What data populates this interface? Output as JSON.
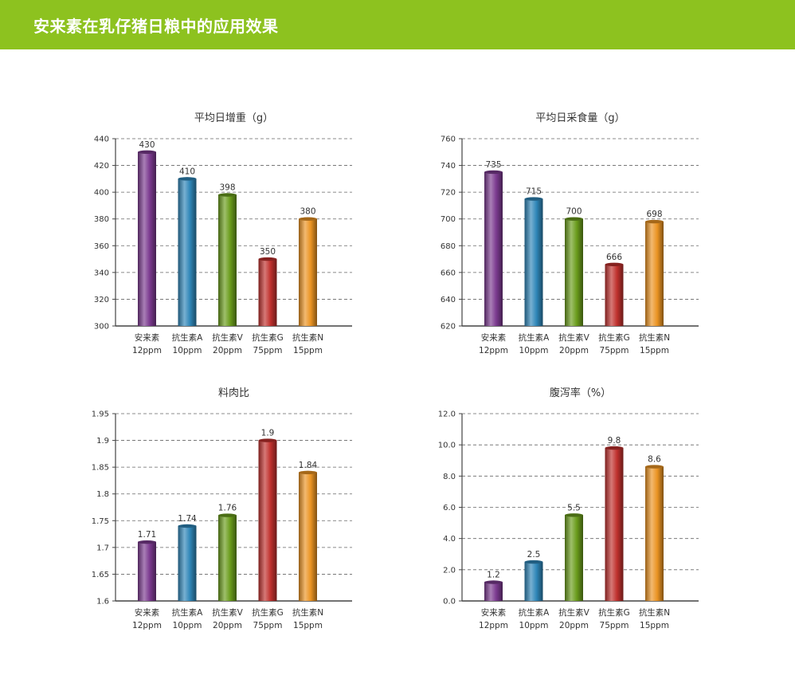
{
  "header": {
    "title": "安来素在乳仔猪日粮中的应用效果",
    "background": "#8dc21f"
  },
  "colors": {
    "purple": "#7b3a8f",
    "blue": "#2f86b8",
    "green": "#6a9c1c",
    "red": "#c0312e",
    "orange": "#eb9423"
  },
  "chart_data": [
    {
      "type": "bar",
      "title": "平均日增重（g）",
      "categories": [
        [
          "安来素",
          "12ppm"
        ],
        [
          "抗生素A",
          "10ppm"
        ],
        [
          "抗生素V",
          "20ppm"
        ],
        [
          "抗生素G",
          "75ppm"
        ],
        [
          "抗生素N",
          "15ppm"
        ]
      ],
      "values": [
        430,
        410,
        398,
        350,
        380
      ],
      "value_labels": [
        "430",
        "410",
        "398",
        "350",
        "380"
      ],
      "ylim": [
        300,
        440
      ],
      "yticks": [
        300,
        320,
        340,
        360,
        380,
        400,
        420,
        440
      ],
      "ytick_labels": [
        "300",
        "320",
        "340",
        "360",
        "380",
        "400",
        "420",
        "440"
      ],
      "grid": true,
      "bar_colors": [
        "purple",
        "blue",
        "green",
        "red",
        "orange"
      ]
    },
    {
      "type": "bar",
      "title": "平均日采食量（g）",
      "categories": [
        [
          "安来素",
          "12ppm"
        ],
        [
          "抗生素A",
          "10ppm"
        ],
        [
          "抗生素V",
          "20ppm"
        ],
        [
          "抗生素G",
          "75ppm"
        ],
        [
          "抗生素N",
          "15ppm"
        ]
      ],
      "values": [
        735,
        715,
        700,
        666,
        698
      ],
      "value_labels": [
        "735",
        "715",
        "700",
        "666",
        "698"
      ],
      "ylim": [
        620,
        760
      ],
      "yticks": [
        620,
        640,
        660,
        680,
        700,
        720,
        740,
        760
      ],
      "ytick_labels": [
        "620",
        "640",
        "660",
        "680",
        "700",
        "720",
        "740",
        "760"
      ],
      "grid": true,
      "bar_colors": [
        "purple",
        "blue",
        "green",
        "red",
        "orange"
      ]
    },
    {
      "type": "bar",
      "title": "料肉比",
      "categories": [
        [
          "安来素",
          "12ppm"
        ],
        [
          "抗生素A",
          "10ppm"
        ],
        [
          "抗生素V",
          "20ppm"
        ],
        [
          "抗生素G",
          "75ppm"
        ],
        [
          "抗生素N",
          "15ppm"
        ]
      ],
      "values": [
        1.71,
        1.74,
        1.76,
        1.9,
        1.84
      ],
      "value_labels": [
        "1.71",
        "1.74",
        "1.76",
        "1.9",
        "1.84"
      ],
      "ylim": [
        1.6,
        1.95
      ],
      "yticks": [
        1.6,
        1.65,
        1.7,
        1.75,
        1.8,
        1.85,
        1.9,
        1.95
      ],
      "ytick_labels": [
        "1.6",
        "1.65",
        "1.7",
        "1.75",
        "1.8",
        "1.85",
        "1.9",
        "1.95"
      ],
      "grid": true,
      "bar_colors": [
        "purple",
        "blue",
        "green",
        "red",
        "orange"
      ]
    },
    {
      "type": "bar",
      "title": "腹泻率（%）",
      "categories": [
        [
          "安来素",
          "12ppm"
        ],
        [
          "抗生素A",
          "10ppm"
        ],
        [
          "抗生素V",
          "20ppm"
        ],
        [
          "抗生素G",
          "75ppm"
        ],
        [
          "抗生素N",
          "15ppm"
        ]
      ],
      "values": [
        1.2,
        2.5,
        5.5,
        9.8,
        8.6
      ],
      "value_labels": [
        "1.2",
        "2.5",
        "5.5",
        "9.8",
        "8.6"
      ],
      "ylim": [
        0,
        12
      ],
      "yticks": [
        0,
        2,
        4,
        6,
        8,
        10,
        12
      ],
      "ytick_labels": [
        "0.0",
        "2.0",
        "4.0",
        "6.0",
        "8.0",
        "10.0",
        "12.0"
      ],
      "grid": true,
      "bar_colors": [
        "purple",
        "blue",
        "green",
        "red",
        "orange"
      ]
    }
  ]
}
